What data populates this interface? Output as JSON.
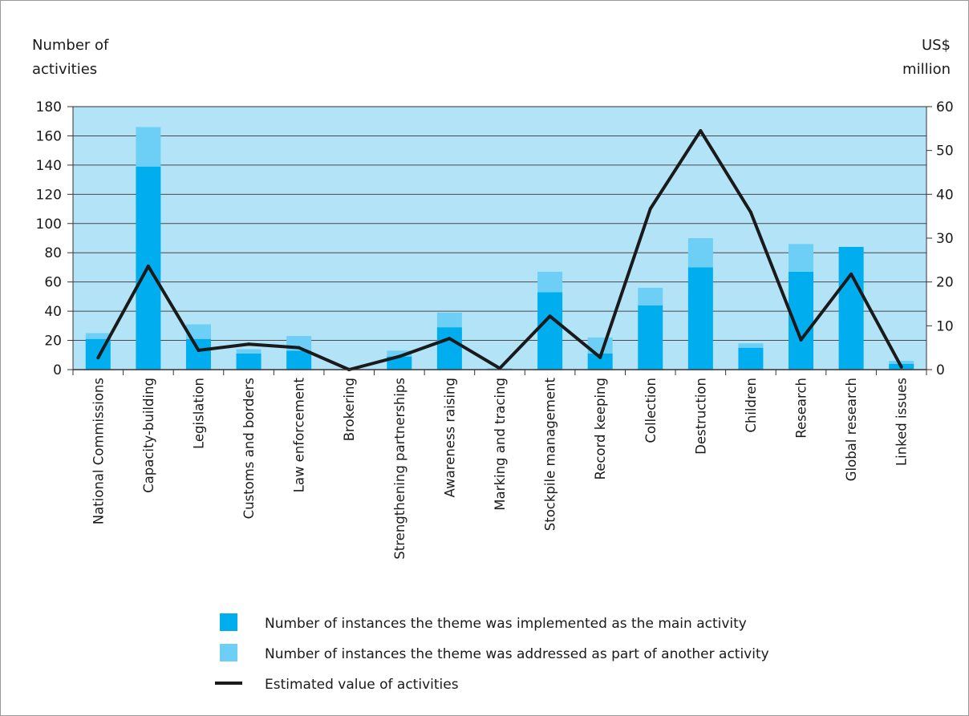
{
  "chart_data": {
    "type": "bar",
    "subtype": "stacked-bar-with-line",
    "left_axis_label": [
      "Number of",
      "activities"
    ],
    "right_axis_label": [
      "US$",
      "million"
    ],
    "left_ylim": [
      0,
      180
    ],
    "left_ticks": [
      0,
      20,
      40,
      60,
      80,
      100,
      120,
      140,
      160,
      180
    ],
    "right_ylim": [
      0,
      60
    ],
    "right_ticks": [
      0,
      10,
      20,
      30,
      40,
      50,
      60
    ],
    "grid": true,
    "legend_placement": "bottom",
    "categories": [
      "National Commissions",
      "Capacity-building",
      "Legislation",
      "Customs and borders",
      "Law enforcement",
      "Brokering",
      "Strengthening partnerships",
      "Awareness raising",
      "Marking and tracing",
      "Stockpile management",
      "Record keeping",
      "Collection",
      "Destruction",
      "Children",
      "Research",
      "Global research",
      "Linked issues"
    ],
    "series": [
      {
        "name": "Number of instances the theme was implemented as the main activity",
        "type": "bar",
        "axis": "left",
        "color": "#00AEEF",
        "values": [
          21,
          139,
          21,
          11,
          13,
          0,
          9,
          29,
          0,
          53,
          11,
          44,
          70,
          15,
          67,
          84,
          4
        ]
      },
      {
        "name": "Number of instances the theme was addressed as part of another activity",
        "type": "bar",
        "axis": "left",
        "color": "#6DCFF6",
        "values": [
          4,
          27,
          10,
          3,
          10,
          0,
          4,
          10,
          1,
          14,
          11,
          12,
          20,
          3,
          19,
          0,
          2
        ]
      },
      {
        "name": "Estimated value of activities",
        "type": "line",
        "axis": "right",
        "color": "#1a1a1a",
        "values": [
          2.7,
          23.6,
          4.4,
          5.8,
          5.0,
          0.0,
          3.0,
          7.1,
          0.3,
          12.2,
          2.8,
          36.7,
          54.5,
          35.9,
          6.8,
          21.8,
          0.6
        ]
      }
    ]
  },
  "colors": {
    "plot_background": "#B3E3F7",
    "main_bar": "#00AEEF",
    "secondary_bar": "#6DCFF6",
    "line": "#1a1a1a"
  }
}
